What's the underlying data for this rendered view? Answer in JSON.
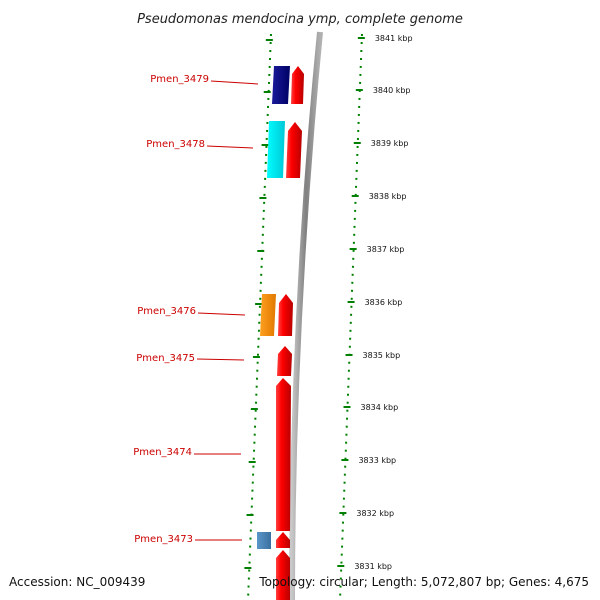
{
  "title": "Pseudomonas mendocina ymp, complete genome",
  "footer": {
    "accession": "Accession: NC_009439",
    "topology": "Topology: circular; Length: 5,072,807 bp; Genes: 4,675"
  },
  "scale_ticks": [
    "3841 kbp",
    "3840 kbp",
    "3839 kbp",
    "3838 kbp",
    "3837 kbp",
    "3836 kbp",
    "3835 kbp",
    "3834 kbp",
    "3833 kbp",
    "3832 kbp",
    "3831 kbp"
  ],
  "gene_labels": [
    "Pmen_3479",
    "Pmen_3478",
    "Pmen_3476",
    "Pmen_3475",
    "Pmen_3474",
    "Pmen_3473"
  ],
  "colors": {
    "forward_gene": "#ff0000",
    "tick_green": "#008000",
    "backbone": "#888888",
    "label_red": "#cc0000",
    "gene_3479_reverse": "#000080",
    "gene_3478_reverse": "#00e5ee",
    "gene_3476_reverse": "#ff8c00",
    "gene_3473_reverse": "#4682b4"
  }
}
